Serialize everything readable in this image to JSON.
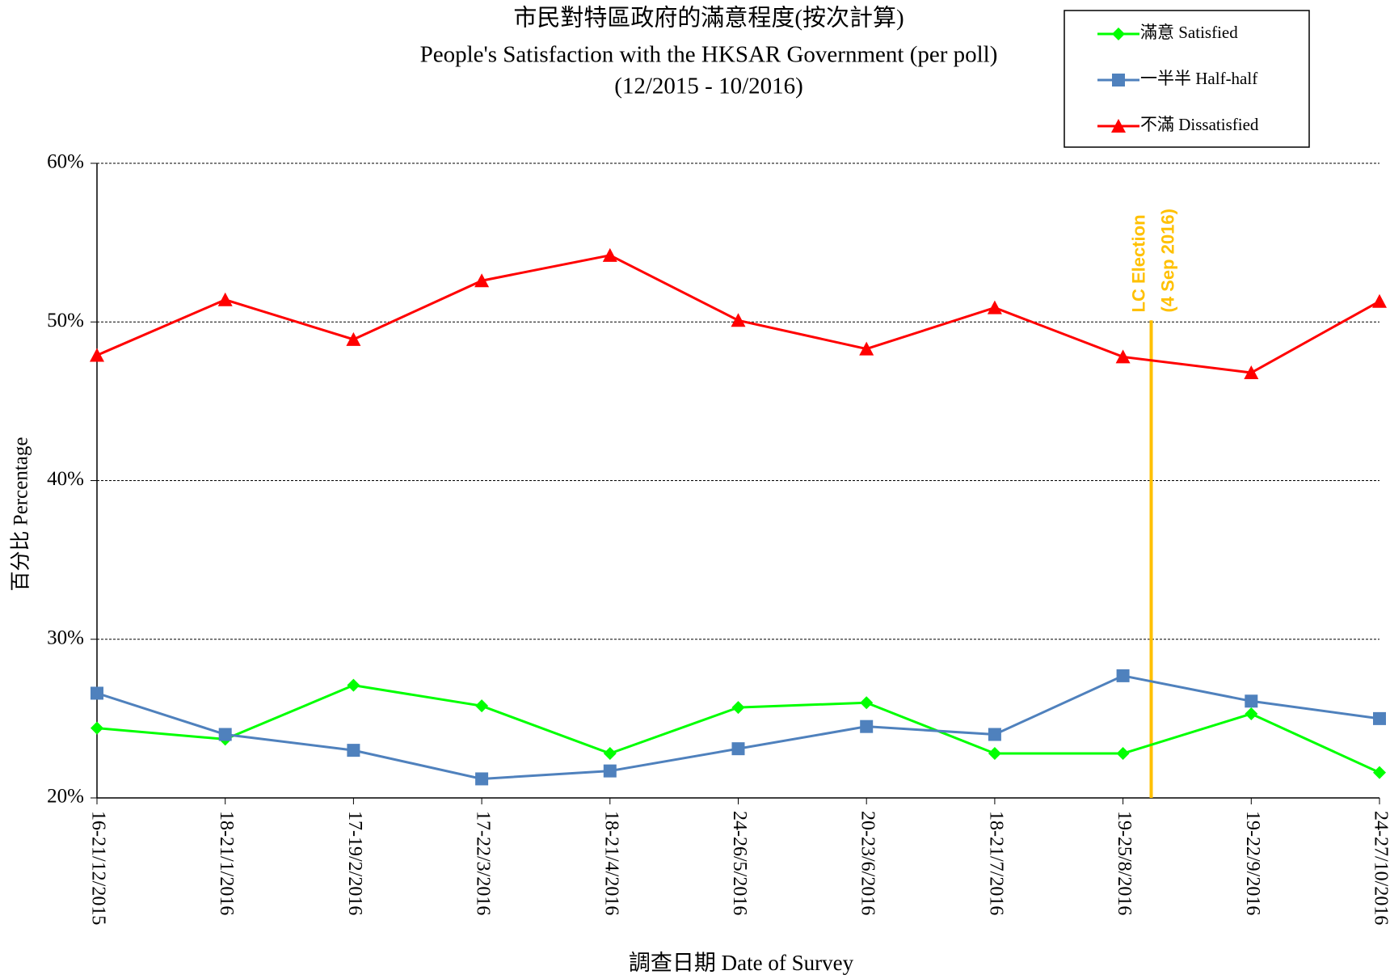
{
  "chart_data": {
    "type": "line",
    "title": "市民對特區政府的滿意程度(按次計算)",
    "subtitle": "People's Satisfaction with the HKSAR Government (per poll)",
    "period": "(12/2015  - 10/2016)",
    "x_label": "調查日期 Date of Survey",
    "y_label": "百分比 Percentage",
    "categories": [
      "16-21/12/2015",
      "18-21/1/2016",
      "17-19/2/2016",
      "17-22/3/2016",
      "18-21/4/2016",
      "24-26/5/2016",
      "20-23/6/2016",
      "18-21/7/2016",
      "19-25/8/2016",
      "19-22/9/2016",
      "24-27/10/2016"
    ],
    "series": [
      {
        "name": "滿意 Satisfied",
        "color": "#00ff00",
        "marker": "diamond",
        "values": [
          24.4,
          23.7,
          27.1,
          25.8,
          22.8,
          25.7,
          26.0,
          22.8,
          22.8,
          25.3,
          21.6
        ]
      },
      {
        "name": "一半半 Half-half",
        "color": "#4f81bd",
        "marker": "square",
        "values": [
          26.6,
          24.0,
          23.0,
          21.2,
          21.7,
          23.1,
          24.5,
          24.0,
          27.7,
          26.1,
          25.0
        ]
      },
      {
        "name": "不滿 Dissatisfied",
        "color": "#ff0000",
        "marker": "triangle",
        "values": [
          47.9,
          51.4,
          48.9,
          52.6,
          54.2,
          50.1,
          48.3,
          50.9,
          47.8,
          46.8,
          51.3
        ]
      }
    ],
    "ylim": [
      20,
      60
    ],
    "yticks": [
      {
        "value": 20,
        "label": "20%"
      },
      {
        "value": 30,
        "label": "30%"
      },
      {
        "value": 40,
        "label": "40%"
      },
      {
        "value": 50,
        "label": "50%"
      },
      {
        "value": 60,
        "label": "60%"
      }
    ],
    "grid": true,
    "legend": "top-right",
    "annotation": {
      "line1": "LC Election",
      "line2": "(4 Sep 2016)",
      "color": "#ffc000"
    }
  }
}
